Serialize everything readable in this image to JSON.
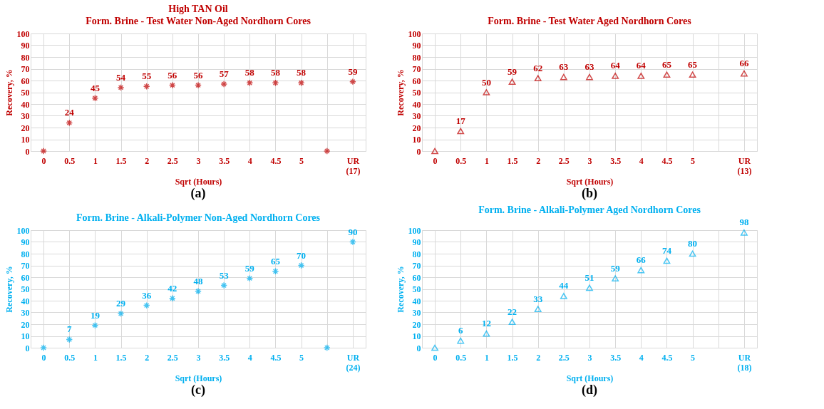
{
  "chart_data": [
    {
      "type": "scatter",
      "title": "High TAN Oil",
      "subtitle": "Form. Brine - Test Water Non-Aged Nordhorn Cores",
      "xlabel": "Sqrt (Hours)",
      "ylabel": "Recovery, %",
      "categories": [
        "0",
        "0.5",
        "1",
        "1.5",
        "2",
        "2.5",
        "3",
        "3.5",
        "4",
        "4.5",
        "5",
        null,
        "UR (17)"
      ],
      "values": [
        0,
        24,
        45,
        54,
        55,
        56,
        56,
        57,
        58,
        58,
        58,
        0,
        59
      ],
      "value_labels": [
        null,
        "24",
        "45",
        "54",
        "55",
        "56",
        "56",
        "57",
        "58",
        "58",
        "58",
        null,
        "59"
      ],
      "color": "#c00000",
      "marker": "cross",
      "ylim": [
        0,
        100
      ],
      "yticks": [
        0,
        10,
        20,
        30,
        40,
        50,
        60,
        70,
        80,
        90,
        100
      ],
      "grid": true,
      "annotations": [
        "(a)"
      ]
    },
    {
      "type": "scatter",
      "title": "Form. Brine - Test Water Aged Nordhorn Cores",
      "xlabel": "Sqrt (Hours)",
      "ylabel": "Recovery, %",
      "categories": [
        "0",
        "0.5",
        "1",
        "1.5",
        "2",
        "2.5",
        "3",
        "3.5",
        "4",
        "4.5",
        "5",
        null,
        "UR (13)"
      ],
      "values": [
        0,
        17,
        50,
        59,
        62,
        63,
        63,
        64,
        64,
        65,
        65,
        null,
        66
      ],
      "value_labels": [
        null,
        "17",
        "50",
        "59",
        "62",
        "63",
        "63",
        "64",
        "64",
        "65",
        "65",
        null,
        "66"
      ],
      "color": "#c00000",
      "marker": "triangle",
      "ylim": [
        0,
        100
      ],
      "yticks": [
        0,
        10,
        20,
        30,
        40,
        50,
        60,
        70,
        80,
        90,
        100
      ],
      "grid": true,
      "annotations": [
        "(b)"
      ]
    },
    {
      "type": "scatter",
      "title": "Form. Brine - Alkali-Polymer Non-Aged Nordhorn Cores",
      "xlabel": "Sqrt (Hours)",
      "ylabel": "Recovery, %",
      "categories": [
        "0",
        "0.5",
        "1",
        "1.5",
        "2",
        "2.5",
        "3",
        "3.5",
        "4",
        "4.5",
        "5",
        null,
        "UR (24)"
      ],
      "values": [
        0,
        7,
        19,
        29,
        36,
        42,
        48,
        53,
        59,
        65,
        70,
        0,
        90
      ],
      "value_labels": [
        null,
        "7",
        "19",
        "29",
        "36",
        "42",
        "48",
        "53",
        "59",
        "65",
        "70",
        null,
        "90"
      ],
      "color": "#00b0f0",
      "marker": "cross",
      "ylim": [
        0,
        100
      ],
      "yticks": [
        0,
        10,
        20,
        30,
        40,
        50,
        60,
        70,
        80,
        90,
        100
      ],
      "grid": true,
      "annotations": [
        "(c)"
      ]
    },
    {
      "type": "scatter",
      "title": "Form. Brine - Alkali-Polymer Aged Nordhorn Cores",
      "xlabel": "Sqrt (Hours)",
      "ylabel": "Recovery, %",
      "categories": [
        "0",
        "0.5",
        "1",
        "1.5",
        "2",
        "2.5",
        "3",
        "3.5",
        "4",
        "4.5",
        "5",
        null,
        "UR (18)"
      ],
      "values": [
        0,
        6,
        12,
        22,
        33,
        44,
        51,
        59,
        66,
        74,
        80,
        null,
        98
      ],
      "value_labels": [
        null,
        "6",
        "12",
        "22",
        "33",
        "44",
        "51",
        "59",
        "66",
        "74",
        "80",
        null,
        "98"
      ],
      "color": "#00b0f0",
      "marker": "triangle",
      "ylim": [
        0,
        100
      ],
      "yticks": [
        0,
        10,
        20,
        30,
        40,
        50,
        60,
        70,
        80,
        90,
        100
      ],
      "grid": true,
      "annotations": [
        "(d)"
      ]
    }
  ]
}
